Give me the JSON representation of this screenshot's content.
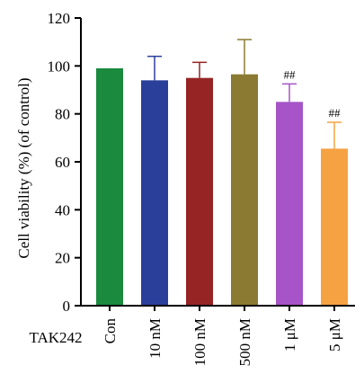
{
  "chart_data": {
    "type": "bar",
    "ylabel": "Cell viability (%) (of control)",
    "treatment_label": "TAK242",
    "categories": [
      "Con",
      "10 nM",
      "100 nM",
      "500 nM",
      "1 μM",
      "5 μM"
    ],
    "values": [
      99,
      94,
      95,
      96.5,
      85,
      65.5
    ],
    "errors": [
      0,
      10,
      6.5,
      14.5,
      7.5,
      11
    ],
    "annotations": [
      "",
      "",
      "",
      "",
      "##",
      "##"
    ],
    "colors": [
      "#1a8a3e",
      "#2a3f9a",
      "#962424",
      "#8b7a32",
      "#a654c8",
      "#f5a243"
    ],
    "ylim": [
      0,
      120
    ],
    "yticks": [
      0,
      20,
      40,
      60,
      80,
      100,
      120
    ]
  }
}
